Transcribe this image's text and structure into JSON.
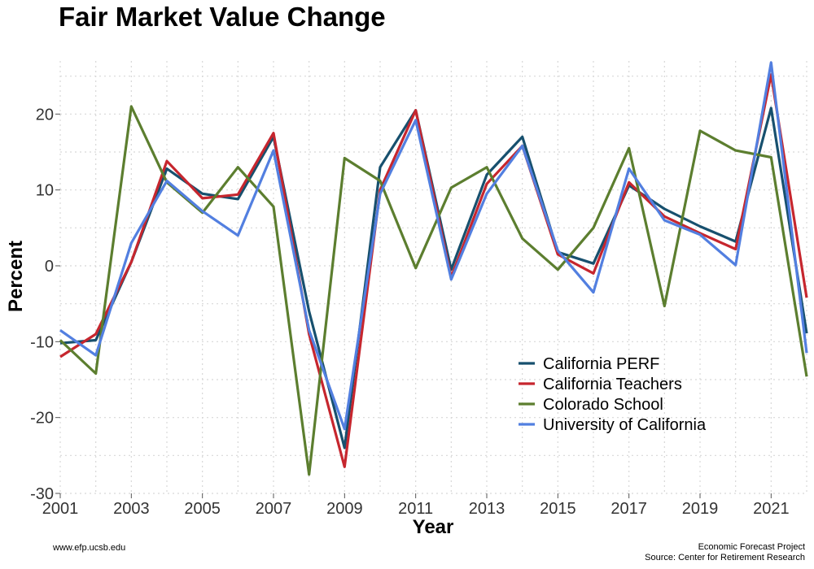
{
  "title": "Fair Market Value Change",
  "footer": {
    "left": "www.efp.ucsb.edu",
    "right_line1": "Economic Forecast Project",
    "right_line2": "Source: Center for Retirement Research"
  },
  "chart_data": {
    "type": "line",
    "title": "Fair Market Value Change",
    "xlabel": "Year",
    "ylabel": "Percent",
    "xlim": [
      2001,
      2022
    ],
    "ylim": [
      -30,
      27
    ],
    "x_ticks": [
      2001,
      2003,
      2005,
      2007,
      2009,
      2011,
      2013,
      2015,
      2017,
      2019,
      2021
    ],
    "y_ticks": [
      -30,
      -20,
      -10,
      0,
      10,
      20
    ],
    "grid": true,
    "legend_position": "bottom-right",
    "x": [
      2001,
      2002,
      2003,
      2004,
      2005,
      2006,
      2007,
      2008,
      2009,
      2010,
      2011,
      2012,
      2013,
      2014,
      2015,
      2016,
      2017,
      2018,
      2019,
      2020,
      2021,
      2022
    ],
    "series": [
      {
        "name": "California PERF",
        "color": "#17506e",
        "values": [
          -10.2,
          -9.8,
          0.5,
          12.8,
          9.5,
          8.8,
          17.0,
          -6.0,
          -24.0,
          13.0,
          20.5,
          -0.5,
          12.0,
          17.0,
          1.8,
          0.3,
          10.6,
          7.5,
          5.2,
          3.2,
          20.8,
          -8.9
        ]
      },
      {
        "name": "California Teachers",
        "color": "#c6262e",
        "values": [
          -12.0,
          -9.0,
          0.5,
          13.8,
          8.9,
          9.4,
          17.5,
          -9.0,
          -26.5,
          10.0,
          20.5,
          -1.5,
          10.8,
          15.8,
          1.5,
          -1.0,
          11.0,
          6.5,
          4.3,
          2.2,
          25.2,
          -4.2
        ]
      },
      {
        "name": "Colorado School",
        "color": "#5c7e2f",
        "values": [
          -9.8,
          -14.2,
          21.0,
          11.0,
          7.0,
          13.0,
          7.8,
          -27.5,
          14.2,
          11.2,
          -0.3,
          10.3,
          13.0,
          3.6,
          -0.5,
          5.0,
          15.5,
          -5.3,
          17.8,
          15.2,
          14.3,
          -14.6
        ]
      },
      {
        "name": "University of California",
        "color": "#527fe0",
        "values": [
          -8.5,
          -11.8,
          3.0,
          11.2,
          7.2,
          4.0,
          15.2,
          -8.5,
          -21.5,
          9.5,
          19.2,
          -1.8,
          9.5,
          15.8,
          2.0,
          -3.5,
          12.8,
          6.0,
          4.1,
          0.1,
          26.8,
          -11.5
        ]
      }
    ]
  }
}
